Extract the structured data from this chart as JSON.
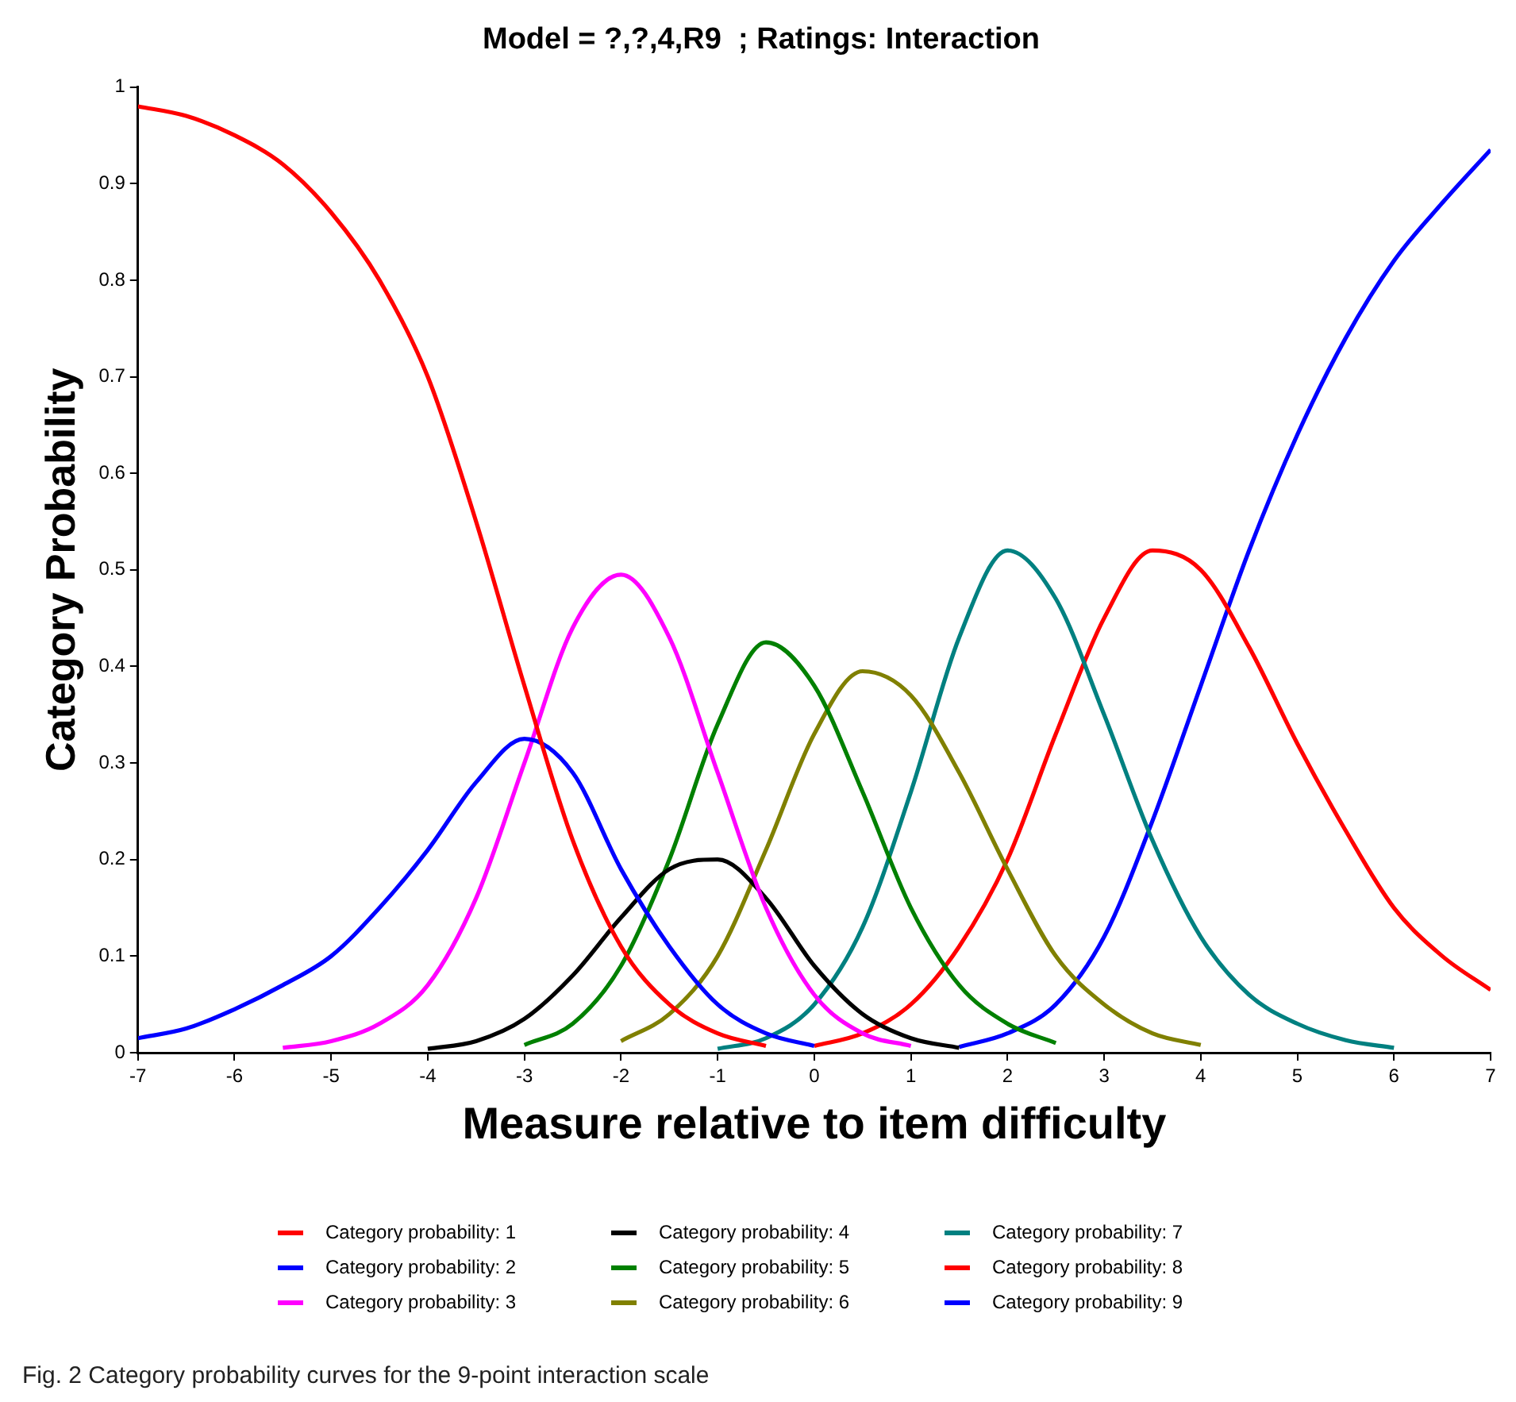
{
  "chart_data": {
    "type": "line",
    "title": "Model = ?,?,4,R9  ; Ratings: Interaction",
    "xlabel": "Measure relative to item difficulty",
    "ylabel": "Category Probability",
    "series": [
      {
        "name": "Category probability: 1",
        "color": "#ff0000",
        "x": [
          -7,
          -6.5,
          -6,
          -5.5,
          -5,
          -4.5,
          -4,
          -3.5,
          -3,
          -2.5,
          -2,
          -1.5,
          -1,
          -0.5
        ],
        "values": [
          0.98,
          0.97,
          0.95,
          0.92,
          0.87,
          0.8,
          0.7,
          0.55,
          0.38,
          0.22,
          0.11,
          0.05,
          0.02,
          0.007
        ]
      },
      {
        "name": "Category probability: 2",
        "color": "#0000ff",
        "x": [
          -7,
          -6.5,
          -6,
          -5.5,
          -5,
          -4.5,
          -4,
          -3.5,
          -3,
          -2.5,
          -2,
          -1.5,
          -1,
          -0.5,
          0
        ],
        "values": [
          0.015,
          0.025,
          0.045,
          0.07,
          0.1,
          0.15,
          0.21,
          0.28,
          0.325,
          0.29,
          0.19,
          0.11,
          0.05,
          0.02,
          0.007
        ]
      },
      {
        "name": "Category probability: 3",
        "color": "#ff00ff",
        "x": [
          -5.5,
          -5,
          -4.5,
          -4,
          -3.5,
          -3,
          -2.5,
          -2,
          -1.5,
          -1,
          -0.5,
          0,
          0.5,
          1
        ],
        "values": [
          0.005,
          0.012,
          0.03,
          0.07,
          0.16,
          0.3,
          0.44,
          0.495,
          0.43,
          0.29,
          0.15,
          0.06,
          0.02,
          0.007
        ]
      },
      {
        "name": "Category probability: 4",
        "color": "#000000",
        "x": [
          -4,
          -3.5,
          -3,
          -2.5,
          -2,
          -1.5,
          -1,
          -0.5,
          0,
          0.5,
          1,
          1.5
        ],
        "values": [
          0.004,
          0.012,
          0.035,
          0.08,
          0.14,
          0.19,
          0.2,
          0.16,
          0.09,
          0.04,
          0.015,
          0.005
        ]
      },
      {
        "name": "Category probability: 5",
        "color": "#008000",
        "x": [
          -3,
          -2.5,
          -2,
          -1.5,
          -1,
          -0.5,
          0,
          0.5,
          1,
          1.5,
          2,
          2.5
        ],
        "values": [
          0.008,
          0.03,
          0.09,
          0.2,
          0.34,
          0.425,
          0.38,
          0.27,
          0.15,
          0.07,
          0.03,
          0.01
        ]
      },
      {
        "name": "Category probability: 6",
        "color": "#808000",
        "x": [
          -2,
          -1.5,
          -1,
          -0.5,
          0,
          0.5,
          1,
          1.5,
          2,
          2.5,
          3,
          3.5,
          4
        ],
        "values": [
          0.012,
          0.04,
          0.1,
          0.21,
          0.33,
          0.395,
          0.37,
          0.29,
          0.19,
          0.1,
          0.05,
          0.02,
          0.008
        ]
      },
      {
        "name": "Category probability: 7",
        "color": "#008080",
        "x": [
          -1,
          -0.5,
          0,
          0.5,
          1,
          1.5,
          2,
          2.5,
          3,
          3.5,
          4,
          4.5,
          5,
          5.5,
          6
        ],
        "values": [
          0.004,
          0.015,
          0.05,
          0.13,
          0.27,
          0.43,
          0.52,
          0.47,
          0.35,
          0.22,
          0.12,
          0.06,
          0.03,
          0.013,
          0.005
        ]
      },
      {
        "name": "Category probability: 8",
        "color": "#ff0000",
        "x": [
          0,
          0.5,
          1,
          1.5,
          2,
          2.5,
          3,
          3.5,
          4,
          4.5,
          5,
          5.5,
          6,
          6.5,
          7
        ],
        "values": [
          0.007,
          0.02,
          0.05,
          0.11,
          0.2,
          0.33,
          0.45,
          0.52,
          0.5,
          0.42,
          0.32,
          0.23,
          0.15,
          0.1,
          0.065
        ]
      },
      {
        "name": "Category probability: 9",
        "color": "#0000ff",
        "x": [
          1.5,
          2,
          2.5,
          3,
          3.5,
          4,
          4.5,
          5,
          5.5,
          6,
          6.5,
          7
        ],
        "values": [
          0.006,
          0.02,
          0.05,
          0.12,
          0.24,
          0.38,
          0.52,
          0.64,
          0.74,
          0.82,
          0.88,
          0.935
        ]
      }
    ],
    "xlim": [
      -7,
      7
    ],
    "xticks": [
      -7,
      -6,
      -5,
      -4,
      -3,
      -2,
      -1,
      0,
      1,
      2,
      3,
      4,
      5,
      6,
      7
    ],
    "ylim": [
      0,
      1
    ],
    "yticks": [
      0,
      0.1,
      0.2,
      0.3,
      0.4,
      0.5,
      0.6,
      0.7,
      0.8,
      0.9,
      1
    ],
    "grid": false,
    "legend": "bottom",
    "marker": "none",
    "line_style": "solid",
    "annotations": [
      "Fig. 2 Category probability curves for the 9-point interaction scale"
    ]
  }
}
